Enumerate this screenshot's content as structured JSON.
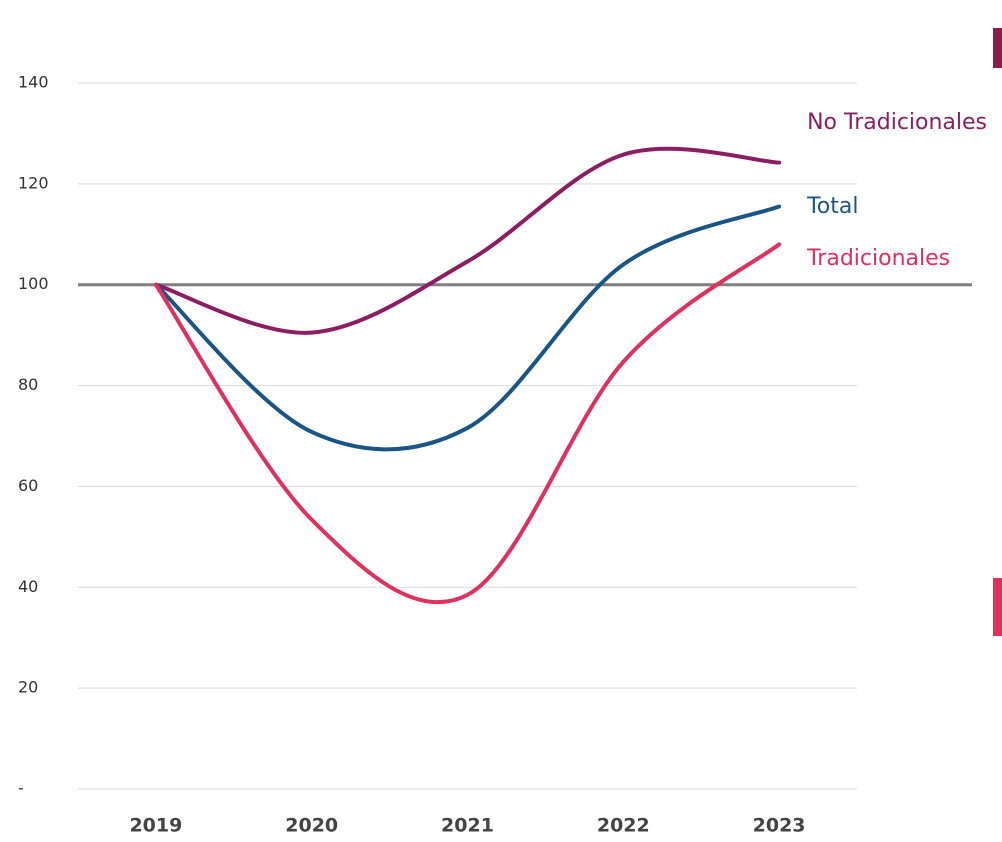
{
  "chart_data": {
    "type": "line",
    "categories": [
      "2019",
      "2020",
      "2021",
      "2022",
      "2023"
    ],
    "series": [
      {
        "name": "No Tradicionales",
        "color": "#8b1d62",
        "values": [
          100,
          90.5,
          104.6,
          125.8,
          124.2
        ]
      },
      {
        "name": "Total",
        "color": "#1b5585",
        "values": [
          100,
          70.8,
          71.6,
          104,
          115.5
        ]
      },
      {
        "name": "Tradicionales",
        "color": "#e0305f",
        "values": [
          100,
          53.4,
          38.5,
          84.7,
          108
        ]
      }
    ],
    "ylim": [
      0,
      140
    ],
    "yticks": [
      {
        "value": 0,
        "label": "-"
      },
      20,
      40,
      60,
      80,
      100,
      120,
      140
    ],
    "grid": true,
    "reference_line": 100
  }
}
